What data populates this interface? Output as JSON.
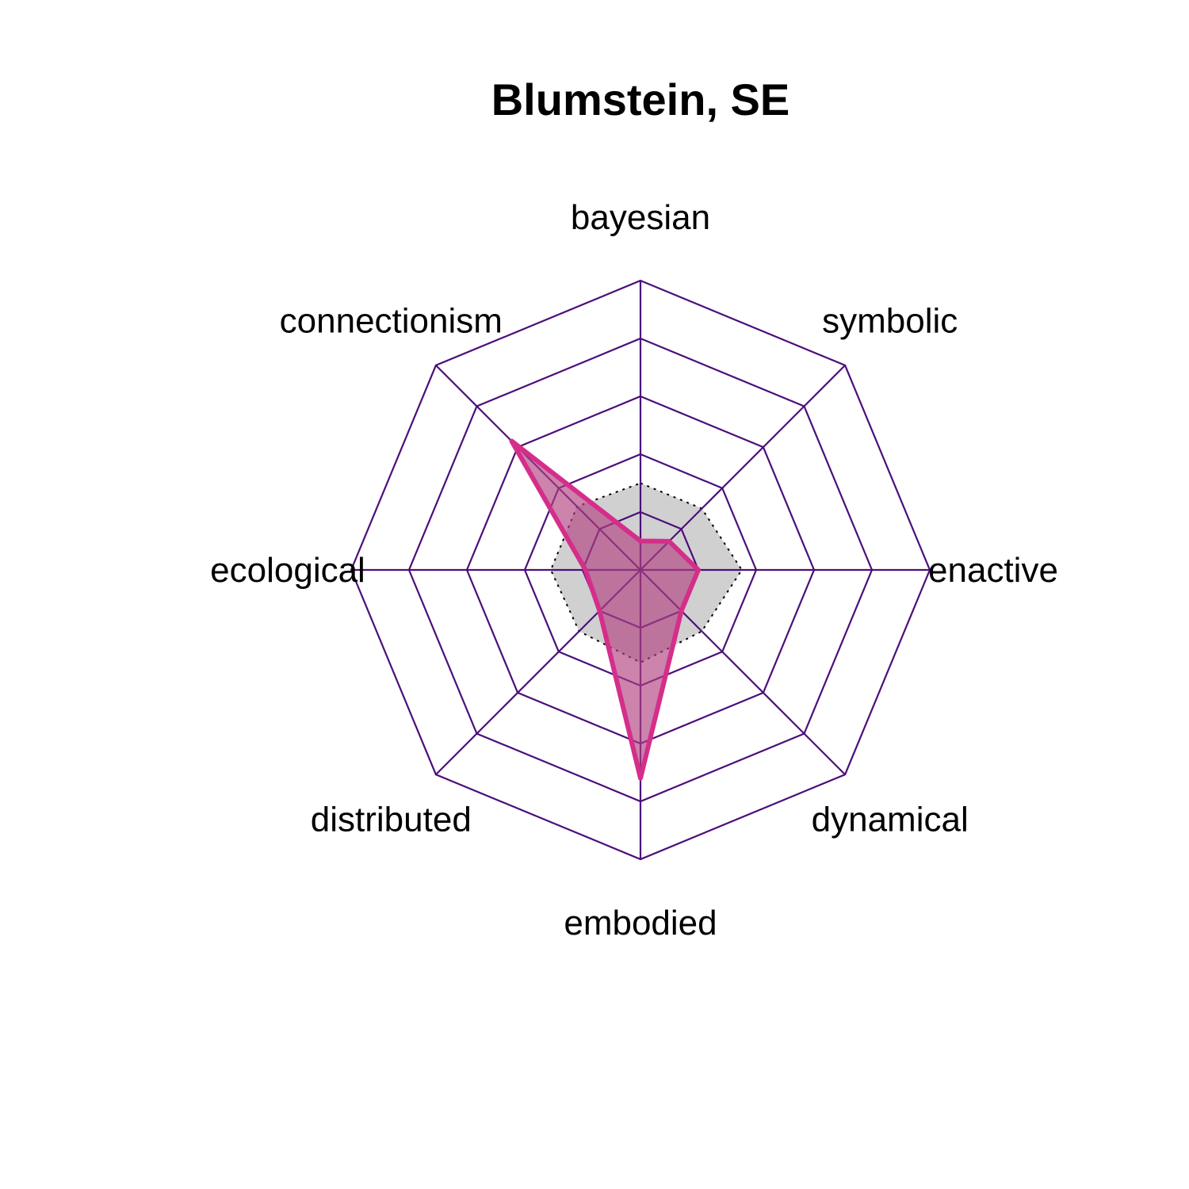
{
  "chart_data": {
    "type": "radar",
    "title": "Blumstein, SE",
    "axes": [
      "bayesian",
      "symbolic",
      "enactive",
      "dynamical",
      "embodied",
      "distributed",
      "ecological",
      "connectionism"
    ],
    "range": [
      0,
      1
    ],
    "grid_levels": 5,
    "grid_color": "#4b0f7a",
    "series": [
      {
        "values": [
          0.1,
          0.14,
          0.2,
          0.2,
          0.72,
          0.2,
          0.19,
          0.63
        ],
        "stroke": "#d52e8a",
        "fill": "#b0407f",
        "fill_opacity": 0.65,
        "line": "solid"
      },
      {
        "values": [
          0.3,
          0.3,
          0.35,
          0.3,
          0.32,
          0.3,
          0.31,
          0.31
        ],
        "stroke": "#000000",
        "fill": "#c8c8c8",
        "fill_opacity": 0.85,
        "line": "dotted"
      }
    ]
  }
}
